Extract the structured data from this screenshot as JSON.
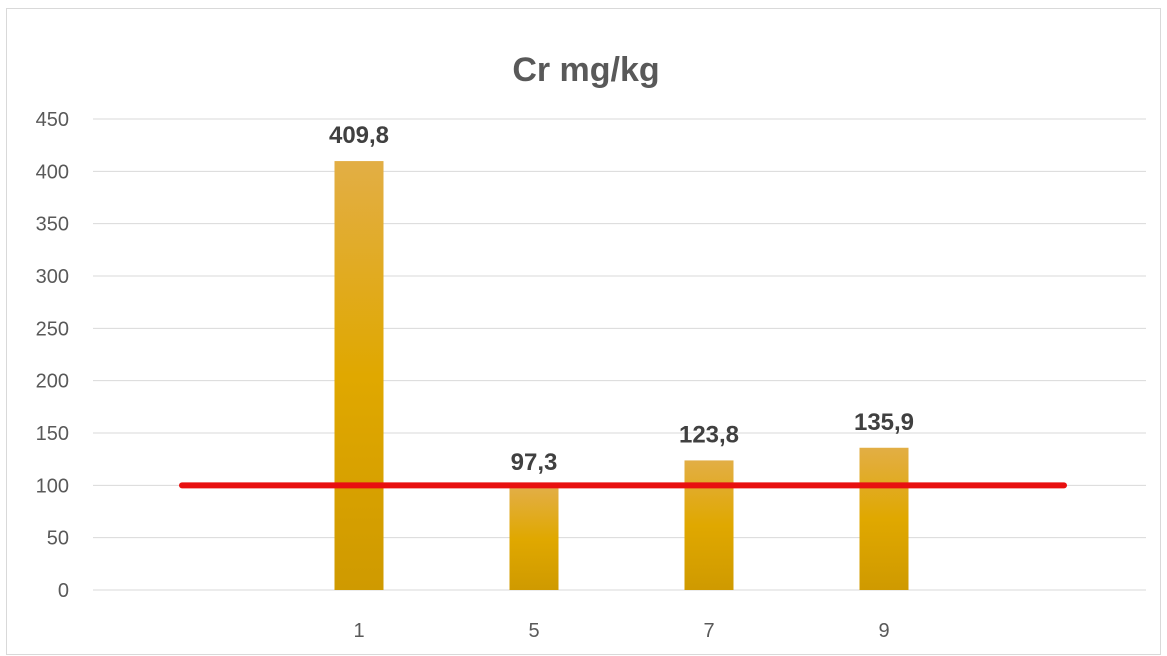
{
  "chart_data": {
    "type": "bar",
    "title": "Cr mg/kg",
    "categories": [
      "1",
      "5",
      "7",
      "9"
    ],
    "values": [
      409.8,
      97.3,
      123.8,
      135.9
    ],
    "data_labels": [
      "409,8",
      "97,3",
      "123,8",
      "135,9"
    ],
    "y_ticks": [
      "0",
      "50",
      "100",
      "150",
      "200",
      "250",
      "300",
      "350",
      "400",
      "450"
    ],
    "ylim": [
      0,
      450
    ],
    "grid": true,
    "legend": "none",
    "reference_line": {
      "value": 100,
      "color": "#e81010"
    },
    "colors": {
      "bar_top": "#e2ae45",
      "bar_mid": "#e0a800",
      "bar_bottom": "#cf9a00",
      "grid": "#d9d9d9"
    }
  }
}
